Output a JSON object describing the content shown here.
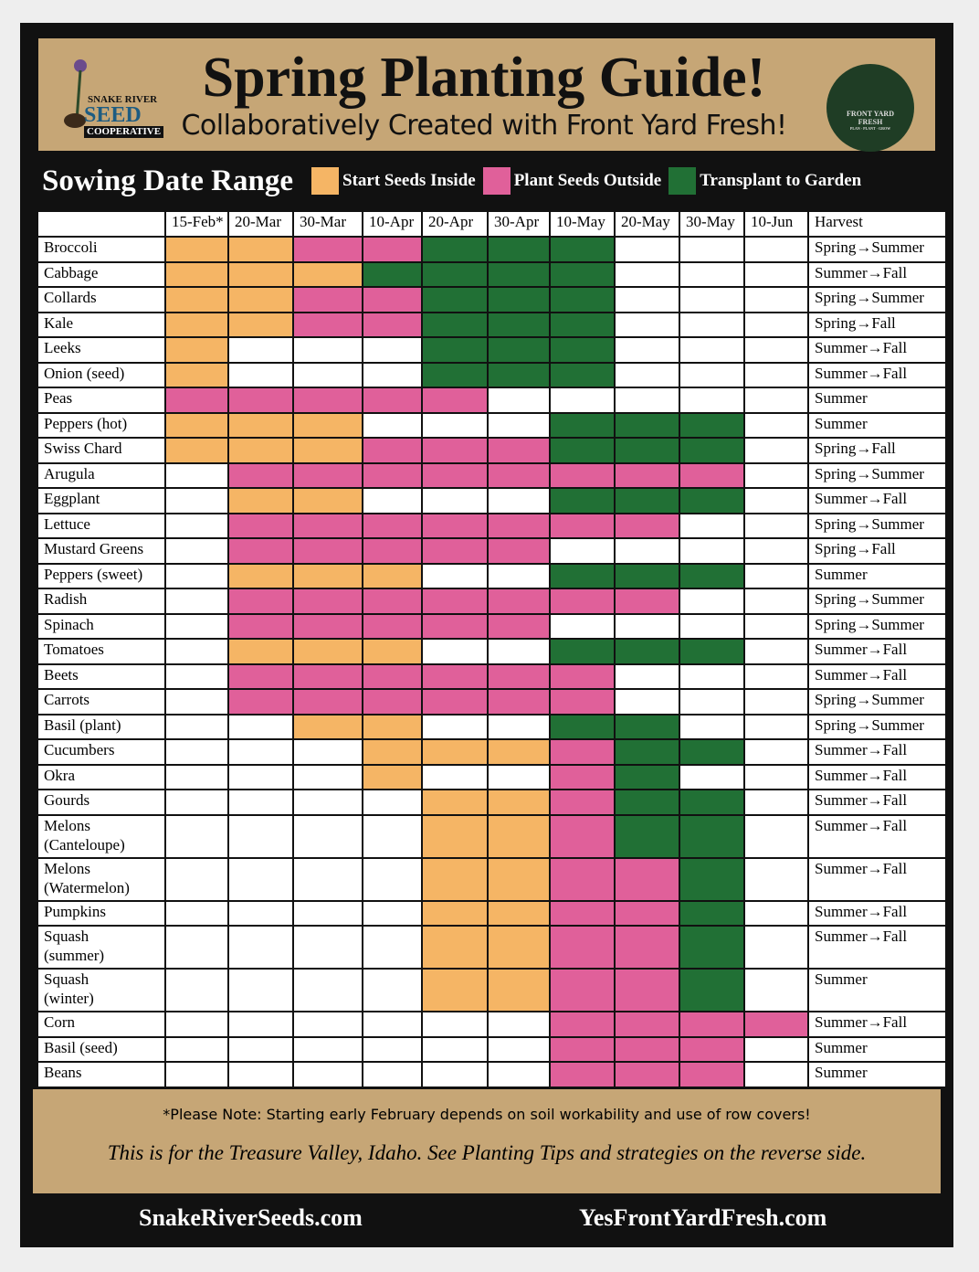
{
  "header": {
    "title": "Spring Planting Guide!",
    "subtitle": "Collaboratively Created with Front Yard Fresh!",
    "logo_left": [
      "SNAKE RIVER",
      "SEED",
      "COOPERATIVE"
    ],
    "logo_right": [
      "FRONT YARD",
      "FRESH",
      "PLAN · PLANT · GROW"
    ]
  },
  "legend": {
    "title": "Sowing Date Range",
    "items": [
      {
        "label": "Start Seeds Inside",
        "color": "#f5b565"
      },
      {
        "label": "Plant Seeds Outside",
        "color": "#e0609a"
      },
      {
        "label": "Transplant to Garden",
        "color": "#217035"
      }
    ]
  },
  "table": {
    "columns": [
      "15-Feb*",
      "20-Mar",
      "30-Mar",
      "10-Apr",
      "20-Apr",
      "30-Apr",
      "10-May",
      "20-May",
      "30-May",
      "10-Jun"
    ],
    "harvest_header": "Harvest",
    "rows": [
      {
        "name": "Broccoli",
        "cells": [
          0,
          0,
          1,
          1,
          2,
          2,
          2,
          null,
          null,
          null
        ],
        "harvest": "Spring→Summer"
      },
      {
        "name": "Cabbage",
        "cells": [
          0,
          0,
          0,
          2,
          2,
          2,
          2,
          null,
          null,
          null
        ],
        "harvest": "Summer→Fall"
      },
      {
        "name": "Collards",
        "cells": [
          0,
          0,
          1,
          1,
          2,
          2,
          2,
          null,
          null,
          null
        ],
        "harvest": "Spring→Summer"
      },
      {
        "name": "Kale",
        "cells": [
          0,
          0,
          1,
          1,
          2,
          2,
          2,
          null,
          null,
          null
        ],
        "harvest": "Spring→Fall"
      },
      {
        "name": "Leeks",
        "cells": [
          0,
          null,
          null,
          null,
          2,
          2,
          2,
          null,
          null,
          null
        ],
        "harvest": "Summer→Fall"
      },
      {
        "name": "Onion (seed)",
        "cells": [
          0,
          null,
          null,
          null,
          2,
          2,
          2,
          null,
          null,
          null
        ],
        "harvest": "Summer→Fall"
      },
      {
        "name": "Peas",
        "cells": [
          1,
          1,
          1,
          1,
          1,
          null,
          null,
          null,
          null,
          null
        ],
        "harvest": "Summer"
      },
      {
        "name": "Peppers (hot)",
        "cells": [
          0,
          0,
          0,
          null,
          null,
          null,
          2,
          2,
          2,
          null
        ],
        "harvest": "Summer"
      },
      {
        "name": "Swiss Chard",
        "cells": [
          0,
          0,
          0,
          1,
          1,
          1,
          2,
          2,
          2,
          null
        ],
        "harvest": "Spring→Fall"
      },
      {
        "name": "Arugula",
        "cells": [
          null,
          1,
          1,
          1,
          1,
          1,
          1,
          1,
          1,
          null
        ],
        "harvest": "Spring→Summer"
      },
      {
        "name": "Eggplant",
        "cells": [
          null,
          0,
          0,
          null,
          null,
          null,
          2,
          2,
          2,
          null
        ],
        "harvest": "Summer→Fall"
      },
      {
        "name": "Lettuce",
        "cells": [
          null,
          1,
          1,
          1,
          1,
          1,
          1,
          1,
          null,
          null
        ],
        "harvest": "Spring→Summer"
      },
      {
        "name": "Mustard Greens",
        "cells": [
          null,
          1,
          1,
          1,
          1,
          1,
          null,
          null,
          null,
          null
        ],
        "harvest": "Spring→Fall"
      },
      {
        "name": "Peppers (sweet)",
        "cells": [
          null,
          0,
          0,
          0,
          null,
          null,
          2,
          2,
          2,
          null
        ],
        "harvest": "Summer"
      },
      {
        "name": "Radish",
        "cells": [
          null,
          1,
          1,
          1,
          1,
          1,
          1,
          1,
          null,
          null
        ],
        "harvest": "Spring→Summer"
      },
      {
        "name": "Spinach",
        "cells": [
          null,
          1,
          1,
          1,
          1,
          1,
          null,
          null,
          null,
          null
        ],
        "harvest": "Spring→Summer"
      },
      {
        "name": "Tomatoes",
        "cells": [
          null,
          0,
          0,
          0,
          null,
          null,
          2,
          2,
          2,
          null
        ],
        "harvest": "Summer→Fall"
      },
      {
        "name": "Beets",
        "cells": [
          null,
          1,
          1,
          1,
          1,
          1,
          1,
          null,
          null,
          null
        ],
        "harvest": "Summer→Fall"
      },
      {
        "name": "Carrots",
        "cells": [
          null,
          1,
          1,
          1,
          1,
          1,
          1,
          null,
          null,
          null
        ],
        "harvest": "Spring→Summer"
      },
      {
        "name": "Basil (plant)",
        "cells": [
          null,
          null,
          0,
          0,
          null,
          null,
          2,
          2,
          null,
          null
        ],
        "harvest": "Spring→Summer"
      },
      {
        "name": "Cucumbers",
        "cells": [
          null,
          null,
          null,
          0,
          0,
          0,
          1,
          2,
          2,
          null
        ],
        "harvest": "Summer→Fall"
      },
      {
        "name": "Okra",
        "cells": [
          null,
          null,
          null,
          0,
          null,
          null,
          1,
          2,
          null,
          null
        ],
        "harvest": "Summer→Fall"
      },
      {
        "name": "Gourds",
        "cells": [
          null,
          null,
          null,
          null,
          0,
          0,
          1,
          2,
          2,
          null
        ],
        "harvest": "Summer→Fall"
      },
      {
        "name": "Melons\n(Canteloupe)",
        "cells": [
          null,
          null,
          null,
          null,
          0,
          0,
          1,
          2,
          2,
          null
        ],
        "harvest": "Summer→Fall"
      },
      {
        "name": "Melons\n(Watermelon)",
        "cells": [
          null,
          null,
          null,
          null,
          0,
          0,
          1,
          1,
          2,
          null
        ],
        "harvest": "Summer→Fall"
      },
      {
        "name": "Pumpkins",
        "cells": [
          null,
          null,
          null,
          null,
          0,
          0,
          1,
          1,
          2,
          null
        ],
        "harvest": "Summer→Fall"
      },
      {
        "name": "Squash\n(summer)",
        "cells": [
          null,
          null,
          null,
          null,
          0,
          0,
          1,
          1,
          2,
          null
        ],
        "harvest": "Summer→Fall"
      },
      {
        "name": "Squash\n(winter)",
        "cells": [
          null,
          null,
          null,
          null,
          0,
          0,
          1,
          1,
          2,
          null
        ],
        "harvest": "Summer"
      },
      {
        "name": "Corn",
        "cells": [
          null,
          null,
          null,
          null,
          null,
          null,
          1,
          1,
          1,
          1
        ],
        "harvest": "Summer→Fall"
      },
      {
        "name": "Basil (seed)",
        "cells": [
          null,
          null,
          null,
          null,
          null,
          null,
          1,
          1,
          1,
          null
        ],
        "harvest": "Summer"
      },
      {
        "name": "Beans",
        "cells": [
          null,
          null,
          null,
          null,
          null,
          null,
          1,
          1,
          1,
          null
        ],
        "harvest": "Summer"
      }
    ]
  },
  "footer": {
    "note": "*Please Note: Starting early February depends on soil workability and use of row covers!",
    "tagline": "This is for the Treasure Valley, Idaho. See Planting Tips and strategies on the reverse side.",
    "links": [
      "SnakeRiverSeeds.com",
      "YesFrontYardFresh.com"
    ]
  }
}
